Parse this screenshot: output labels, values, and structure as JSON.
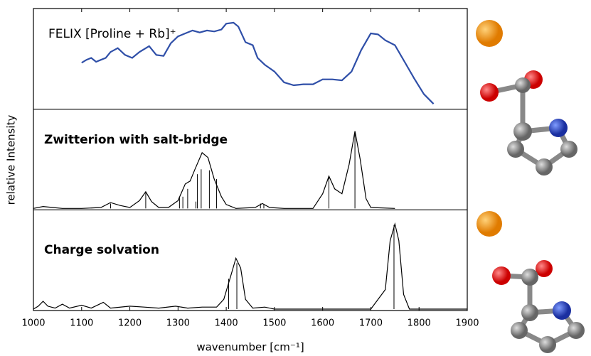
{
  "chart_data": {
    "type": "line",
    "xlabel": "wavenumber [cm⁻¹]",
    "ylabel": "relative Intensity",
    "xlim": [
      1000,
      1900
    ],
    "xticks": [
      1000,
      1100,
      1200,
      1300,
      1400,
      1500,
      1600,
      1700,
      1800,
      1900
    ],
    "panels": [
      {
        "title": "FELIX [Proline + Rb]⁺",
        "color": "#2f4fa8",
        "ylim": [
          0,
          1
        ],
        "x": [
          1100,
          1110,
          1120,
          1130,
          1140,
          1150,
          1160,
          1175,
          1190,
          1205,
          1220,
          1240,
          1255,
          1270,
          1285,
          1300,
          1315,
          1330,
          1345,
          1360,
          1375,
          1390,
          1400,
          1415,
          1425,
          1440,
          1455,
          1465,
          1480,
          1500,
          1520,
          1540,
          1560,
          1580,
          1600,
          1620,
          1640,
          1660,
          1680,
          1700,
          1715,
          1730,
          1750,
          1770,
          1790,
          1810,
          1830
        ],
        "values": [
          0.46,
          0.49,
          0.51,
          0.47,
          0.49,
          0.51,
          0.57,
          0.61,
          0.54,
          0.51,
          0.57,
          0.63,
          0.54,
          0.53,
          0.66,
          0.73,
          0.76,
          0.79,
          0.77,
          0.79,
          0.78,
          0.8,
          0.86,
          0.87,
          0.83,
          0.67,
          0.64,
          0.51,
          0.44,
          0.37,
          0.26,
          0.23,
          0.24,
          0.24,
          0.29,
          0.29,
          0.28,
          0.37,
          0.59,
          0.76,
          0.75,
          0.69,
          0.64,
          0.47,
          0.3,
          0.14,
          0.04
        ]
      },
      {
        "title": "Zwitterion with salt-bridge",
        "color": "#000000",
        "ylim": [
          0,
          1
        ],
        "x": [
          1000,
          1020,
          1040,
          1060,
          1100,
          1140,
          1160,
          1180,
          1200,
          1220,
          1233,
          1245,
          1260,
          1280,
          1300,
          1315,
          1325,
          1335,
          1350,
          1362,
          1375,
          1390,
          1400,
          1420,
          1460,
          1475,
          1490,
          1520,
          1580,
          1600,
          1613,
          1625,
          1640,
          1655,
          1667,
          1678,
          1690,
          1700,
          1750
        ],
        "values": [
          0,
          0.02,
          0.01,
          0,
          0,
          0.01,
          0.06,
          0.03,
          0.01,
          0.08,
          0.17,
          0.07,
          0.01,
          0.01,
          0.08,
          0.25,
          0.28,
          0.4,
          0.57,
          0.52,
          0.3,
          0.12,
          0.04,
          0,
          0.01,
          0.05,
          0.01,
          0,
          0,
          0.15,
          0.33,
          0.2,
          0.15,
          0.45,
          0.79,
          0.5,
          0.1,
          0.01,
          0
        ],
        "stick_x": [
          1160,
          1233,
          1303,
          1310,
          1320,
          1337,
          1340,
          1348,
          1365,
          1380,
          1471,
          1478,
          1613,
          1667
        ],
        "stick_values": [
          0.05,
          0.16,
          0.12,
          0.12,
          0.2,
          0.07,
          0.35,
          0.4,
          0.39,
          0.3,
          0.05,
          0.04,
          0.33,
          0.78
        ]
      },
      {
        "title": "Charge solvation",
        "color": "#000000",
        "ylim": [
          0,
          1
        ],
        "x": [
          1000,
          1010,
          1020,
          1030,
          1045,
          1060,
          1075,
          1100,
          1120,
          1145,
          1160,
          1200,
          1230,
          1260,
          1295,
          1320,
          1350,
          1380,
          1395,
          1410,
          1420,
          1430,
          1440,
          1455,
          1480,
          1500,
          1700,
          1730,
          1740,
          1750,
          1758,
          1768,
          1780,
          1900
        ],
        "values": [
          0,
          0.03,
          0.08,
          0.03,
          0.01,
          0.05,
          0.01,
          0.04,
          0.01,
          0.07,
          0.01,
          0.03,
          0.02,
          0.01,
          0.03,
          0.01,
          0.02,
          0.02,
          0.1,
          0.35,
          0.52,
          0.42,
          0.1,
          0.01,
          0.02,
          0,
          0,
          0.2,
          0.7,
          0.87,
          0.7,
          0.15,
          0,
          0
        ],
        "stick_x": [
          1405,
          1422,
          1748
        ],
        "stick_values": [
          0.31,
          0.47,
          0.86
        ]
      }
    ]
  }
}
